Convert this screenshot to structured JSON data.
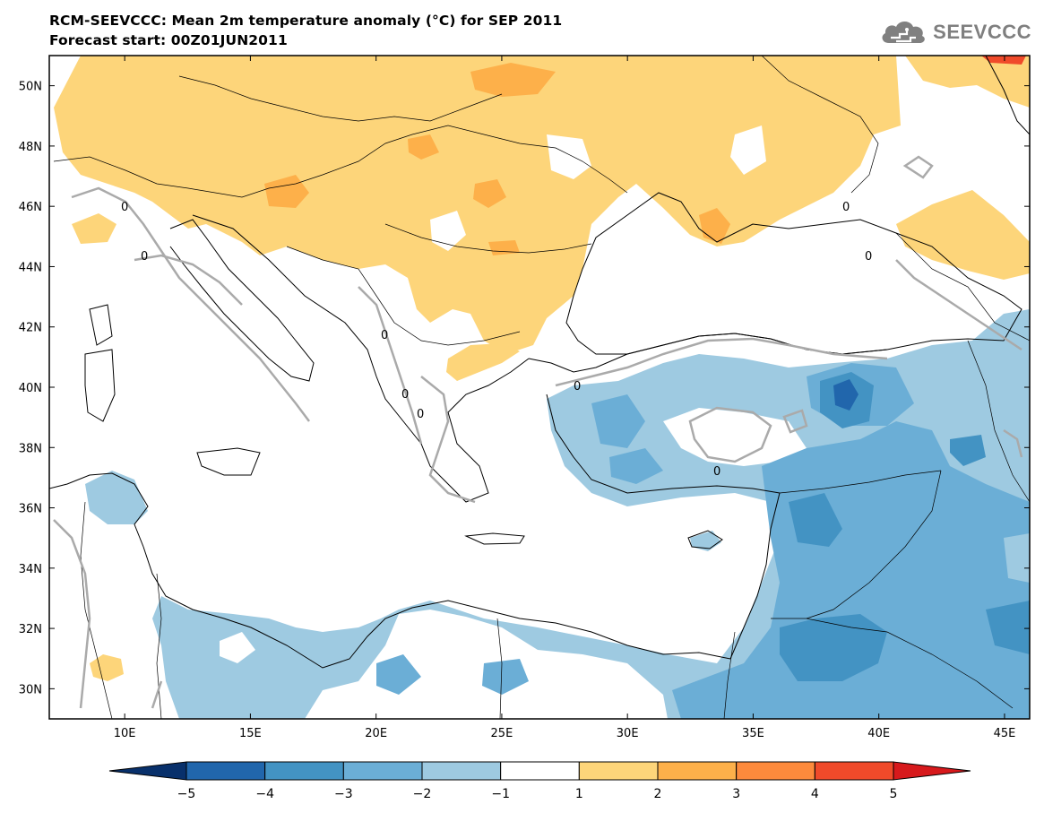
{
  "header": {
    "title": "RCM-SEEVCCC: Mean 2m temperature anomaly (°C) for SEP 2011",
    "subtitle": "Forecast start: 00Z01JUN2011",
    "logo_text": "SEEVCCC",
    "logo_icon": "cloud-icon"
  },
  "map": {
    "lon_range": [
      7,
      46
    ],
    "lat_range": [
      29,
      51
    ],
    "x_ticks": [
      "10E",
      "15E",
      "20E",
      "25E",
      "30E",
      "35E",
      "40E",
      "45E"
    ],
    "y_ticks": [
      "50N",
      "48N",
      "46N",
      "44N",
      "42N",
      "40N",
      "38N",
      "36N",
      "34N",
      "32N",
      "30N"
    ],
    "contour_label": "0",
    "contour_color": "#aaaaaa"
  },
  "colorbar": {
    "labels": [
      "−5",
      "−4",
      "−3",
      "−2",
      "−1",
      "1",
      "2",
      "3",
      "4",
      "5"
    ],
    "colors": [
      "#08306b",
      "#2166ac",
      "#4393c3",
      "#6baed6",
      "#9ecae1",
      "#ffffff",
      "#fdd57a",
      "#fdb04a",
      "#fd8a3c",
      "#f04a2a",
      "#d7191c"
    ]
  }
}
